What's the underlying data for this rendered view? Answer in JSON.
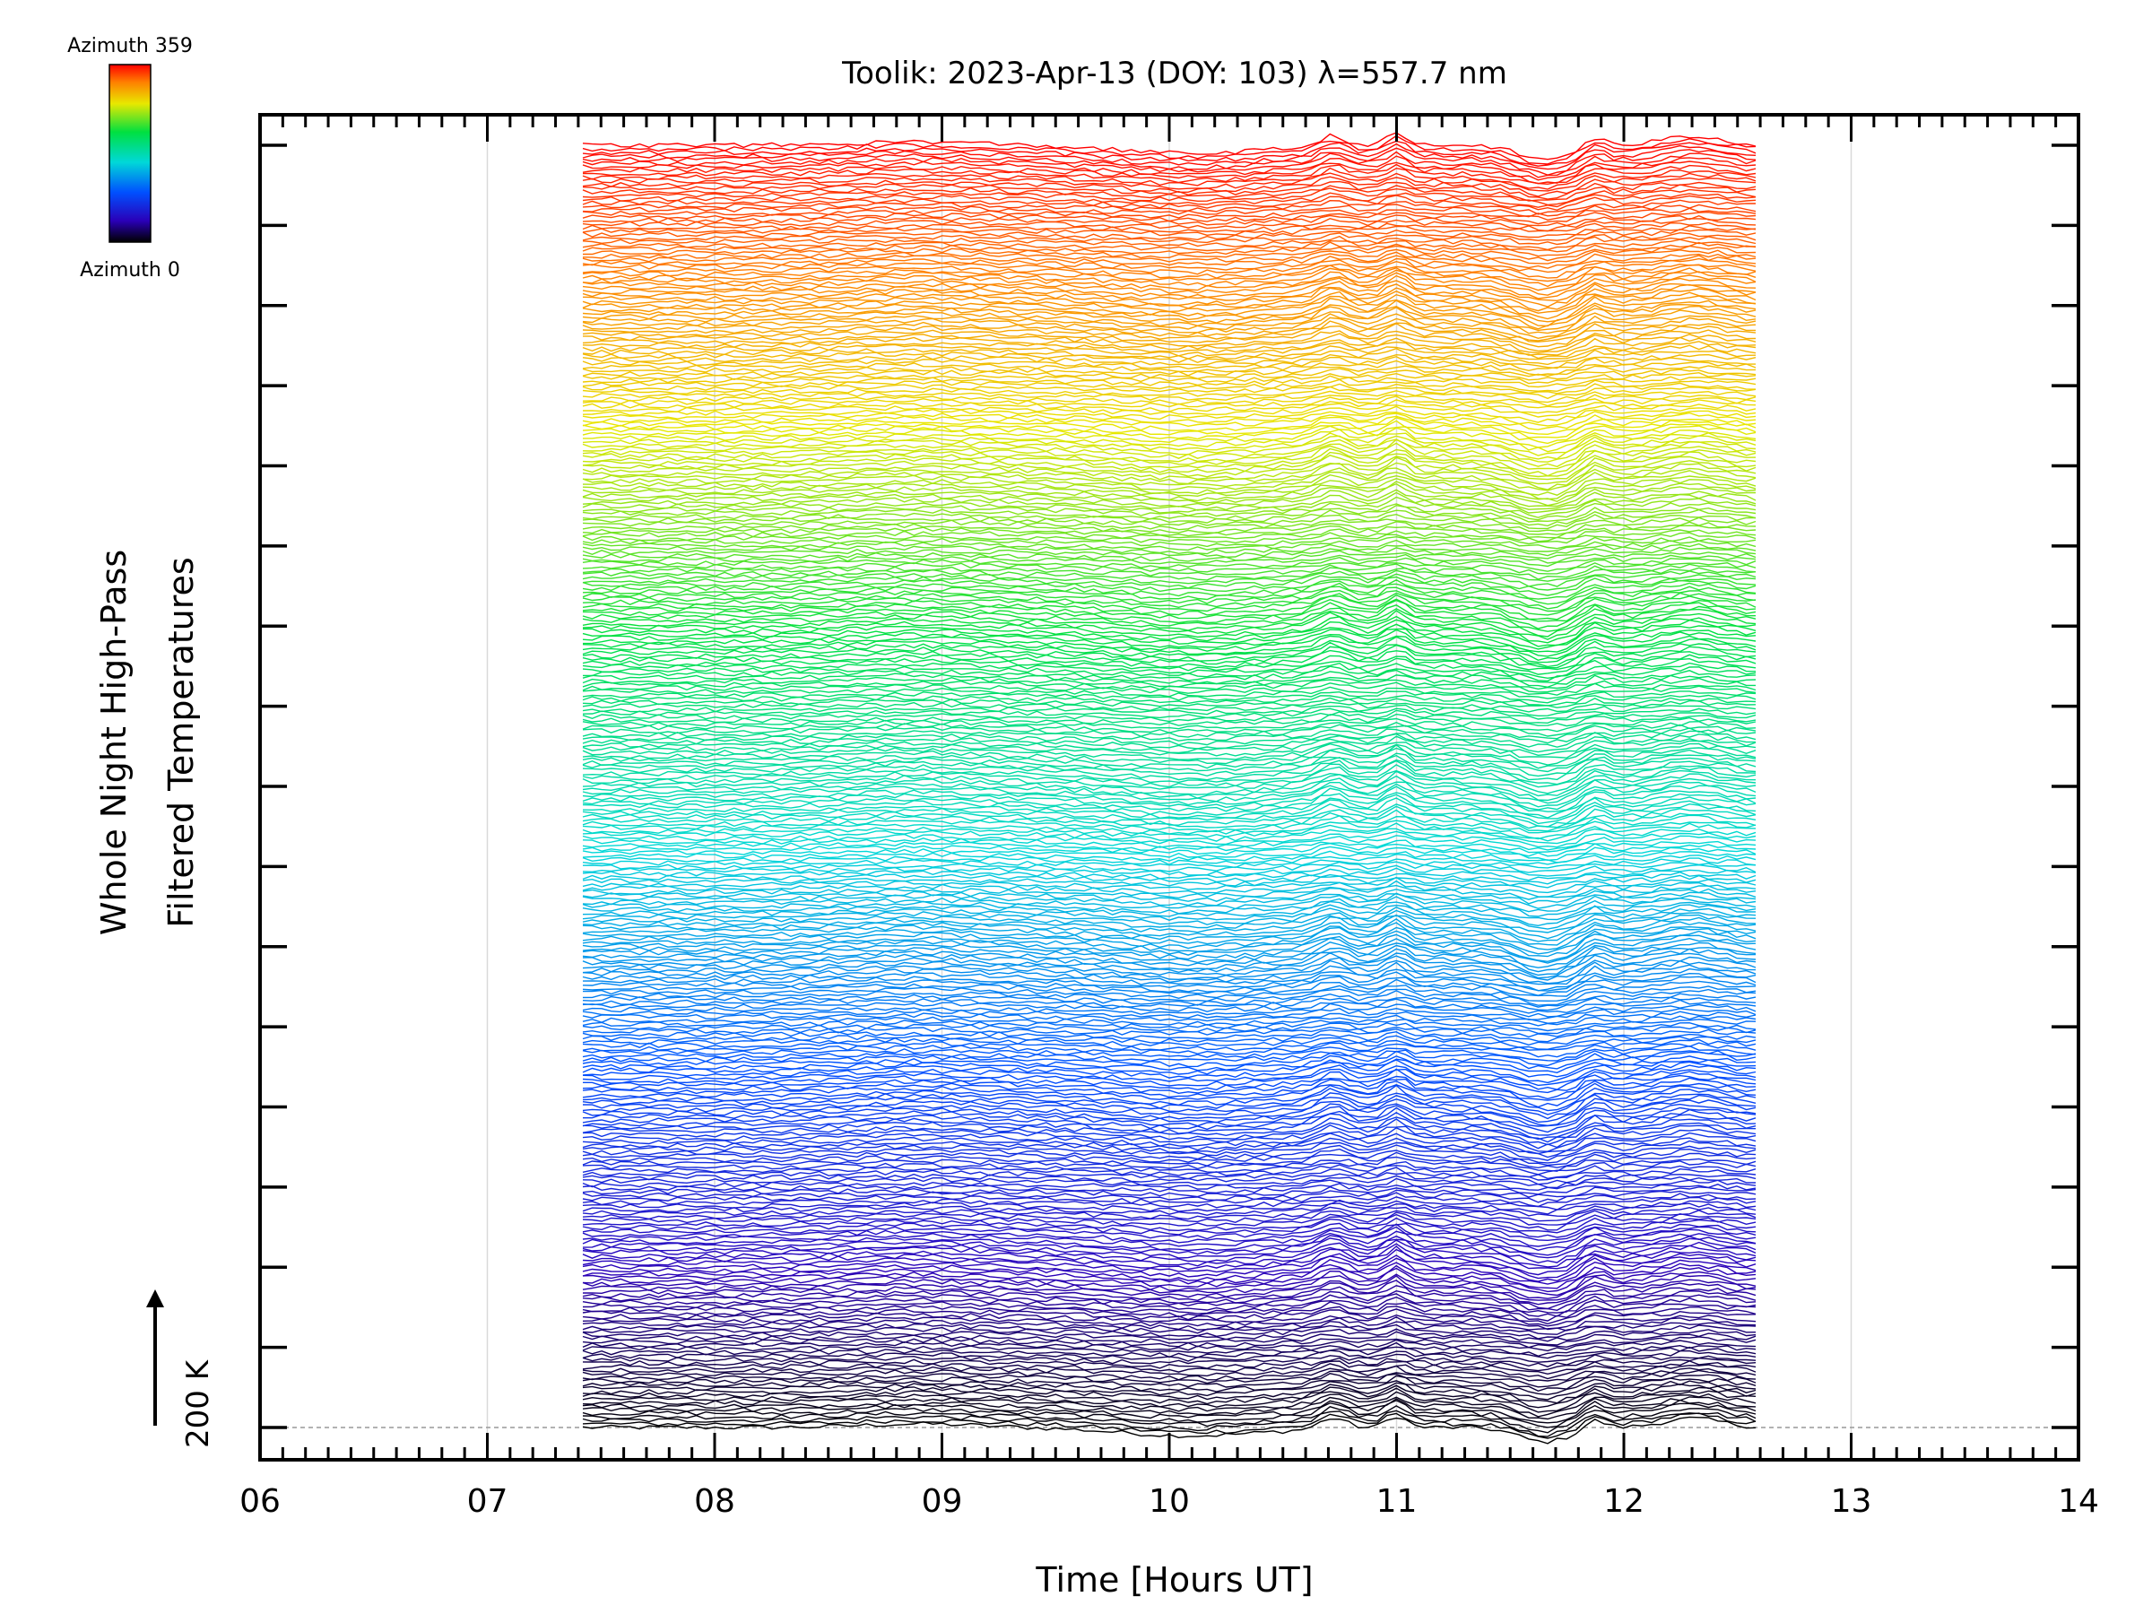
{
  "chart_data": {
    "type": "line",
    "title": "Toolik: 2023-Apr-13 (DOY: 103) λ=557.7 nm",
    "xlabel": "Time [Hours UT]",
    "ylabel": [
      "Whole Night High-Pass",
      "Filtered Temperatures"
    ],
    "xlim": [
      6,
      14
    ],
    "x_tick_labels": [
      "06",
      "07",
      "08",
      "09",
      "10",
      "11",
      "12",
      "13",
      "14"
    ],
    "grid": "vertical lines at each hour",
    "data_time_range": [
      7.42,
      12.58
    ],
    "n_traces": 360,
    "trace_order": "stacked bottom to top by azimuth 0 to 359, color-coded",
    "colorbar": {
      "top_label": "Azimuth  359",
      "bottom_label": "Azimuth  0",
      "colormap": "rainbow",
      "colors": [
        "#000000",
        "#2a00b8",
        "#0050ff",
        "#00d8d8",
        "#00e040",
        "#e8e800",
        "#ff8000",
        "#ff0000"
      ]
    },
    "scale_marker": {
      "label": "200 K"
    },
    "features": [
      {
        "time": 10.72,
        "description": "temperature peak"
      },
      {
        "time": 11.0,
        "description": "temperature peak"
      },
      {
        "time": 11.65,
        "description": "temperature trough"
      },
      {
        "time": 11.87,
        "description": "temperature peak"
      },
      {
        "time": 12.3,
        "description": "temperature peak"
      }
    ]
  }
}
